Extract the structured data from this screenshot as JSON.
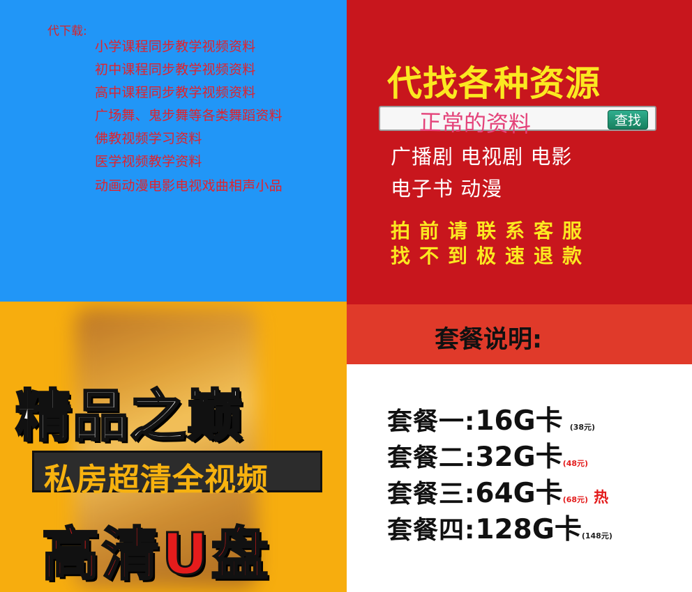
{
  "left_top": {
    "prefix": "代下载:",
    "items": [
      "小学课程同步教学视频资料",
      "初中课程同步教学视频资料",
      "高中课程同步教学视频资料",
      "广场舞、鬼步舞等各类舞蹈资料",
      "佛教视频学习资料",
      "医学视频教学资料",
      "动画动漫电影电视戏曲相声小品"
    ],
    "colors": {
      "background": "#2196f7",
      "text": "#e0222c"
    }
  },
  "right_top": {
    "headline": "代找各种资源",
    "search": {
      "value": "正常的资料",
      "button": "查找"
    },
    "categories_line1": "广播剧  电视剧  电影",
    "categories_line2": "电子书  动漫",
    "notice_line1": "拍前请联系客服",
    "notice_line2": "找不到极速退款",
    "colors": {
      "background": "#c8161d",
      "headline": "#fbe821"
    }
  },
  "left_bottom": {
    "title": "精品之巅",
    "subtitle": "私房超清全视频",
    "product": "高清U盘",
    "colors": {
      "background": "#f7ad0e",
      "product": "#e41c1c"
    }
  },
  "right_bottom": {
    "header": "套餐说明:",
    "packages": [
      {
        "name": "套餐一:",
        "size": "16G卡",
        "price": "(38元)",
        "hot": ""
      },
      {
        "name": "套餐二:",
        "size": "32G卡",
        "price": "(48元)",
        "hot": ""
      },
      {
        "name": "套餐三:",
        "size": "64G卡",
        "price": "(68元)",
        "hot": "热"
      },
      {
        "name": "套餐四:",
        "size": "128G卡",
        "price": "(148元)",
        "hot": ""
      }
    ],
    "colors": {
      "header_bg": "#e03a2a",
      "hot": "#e31c1c"
    }
  }
}
